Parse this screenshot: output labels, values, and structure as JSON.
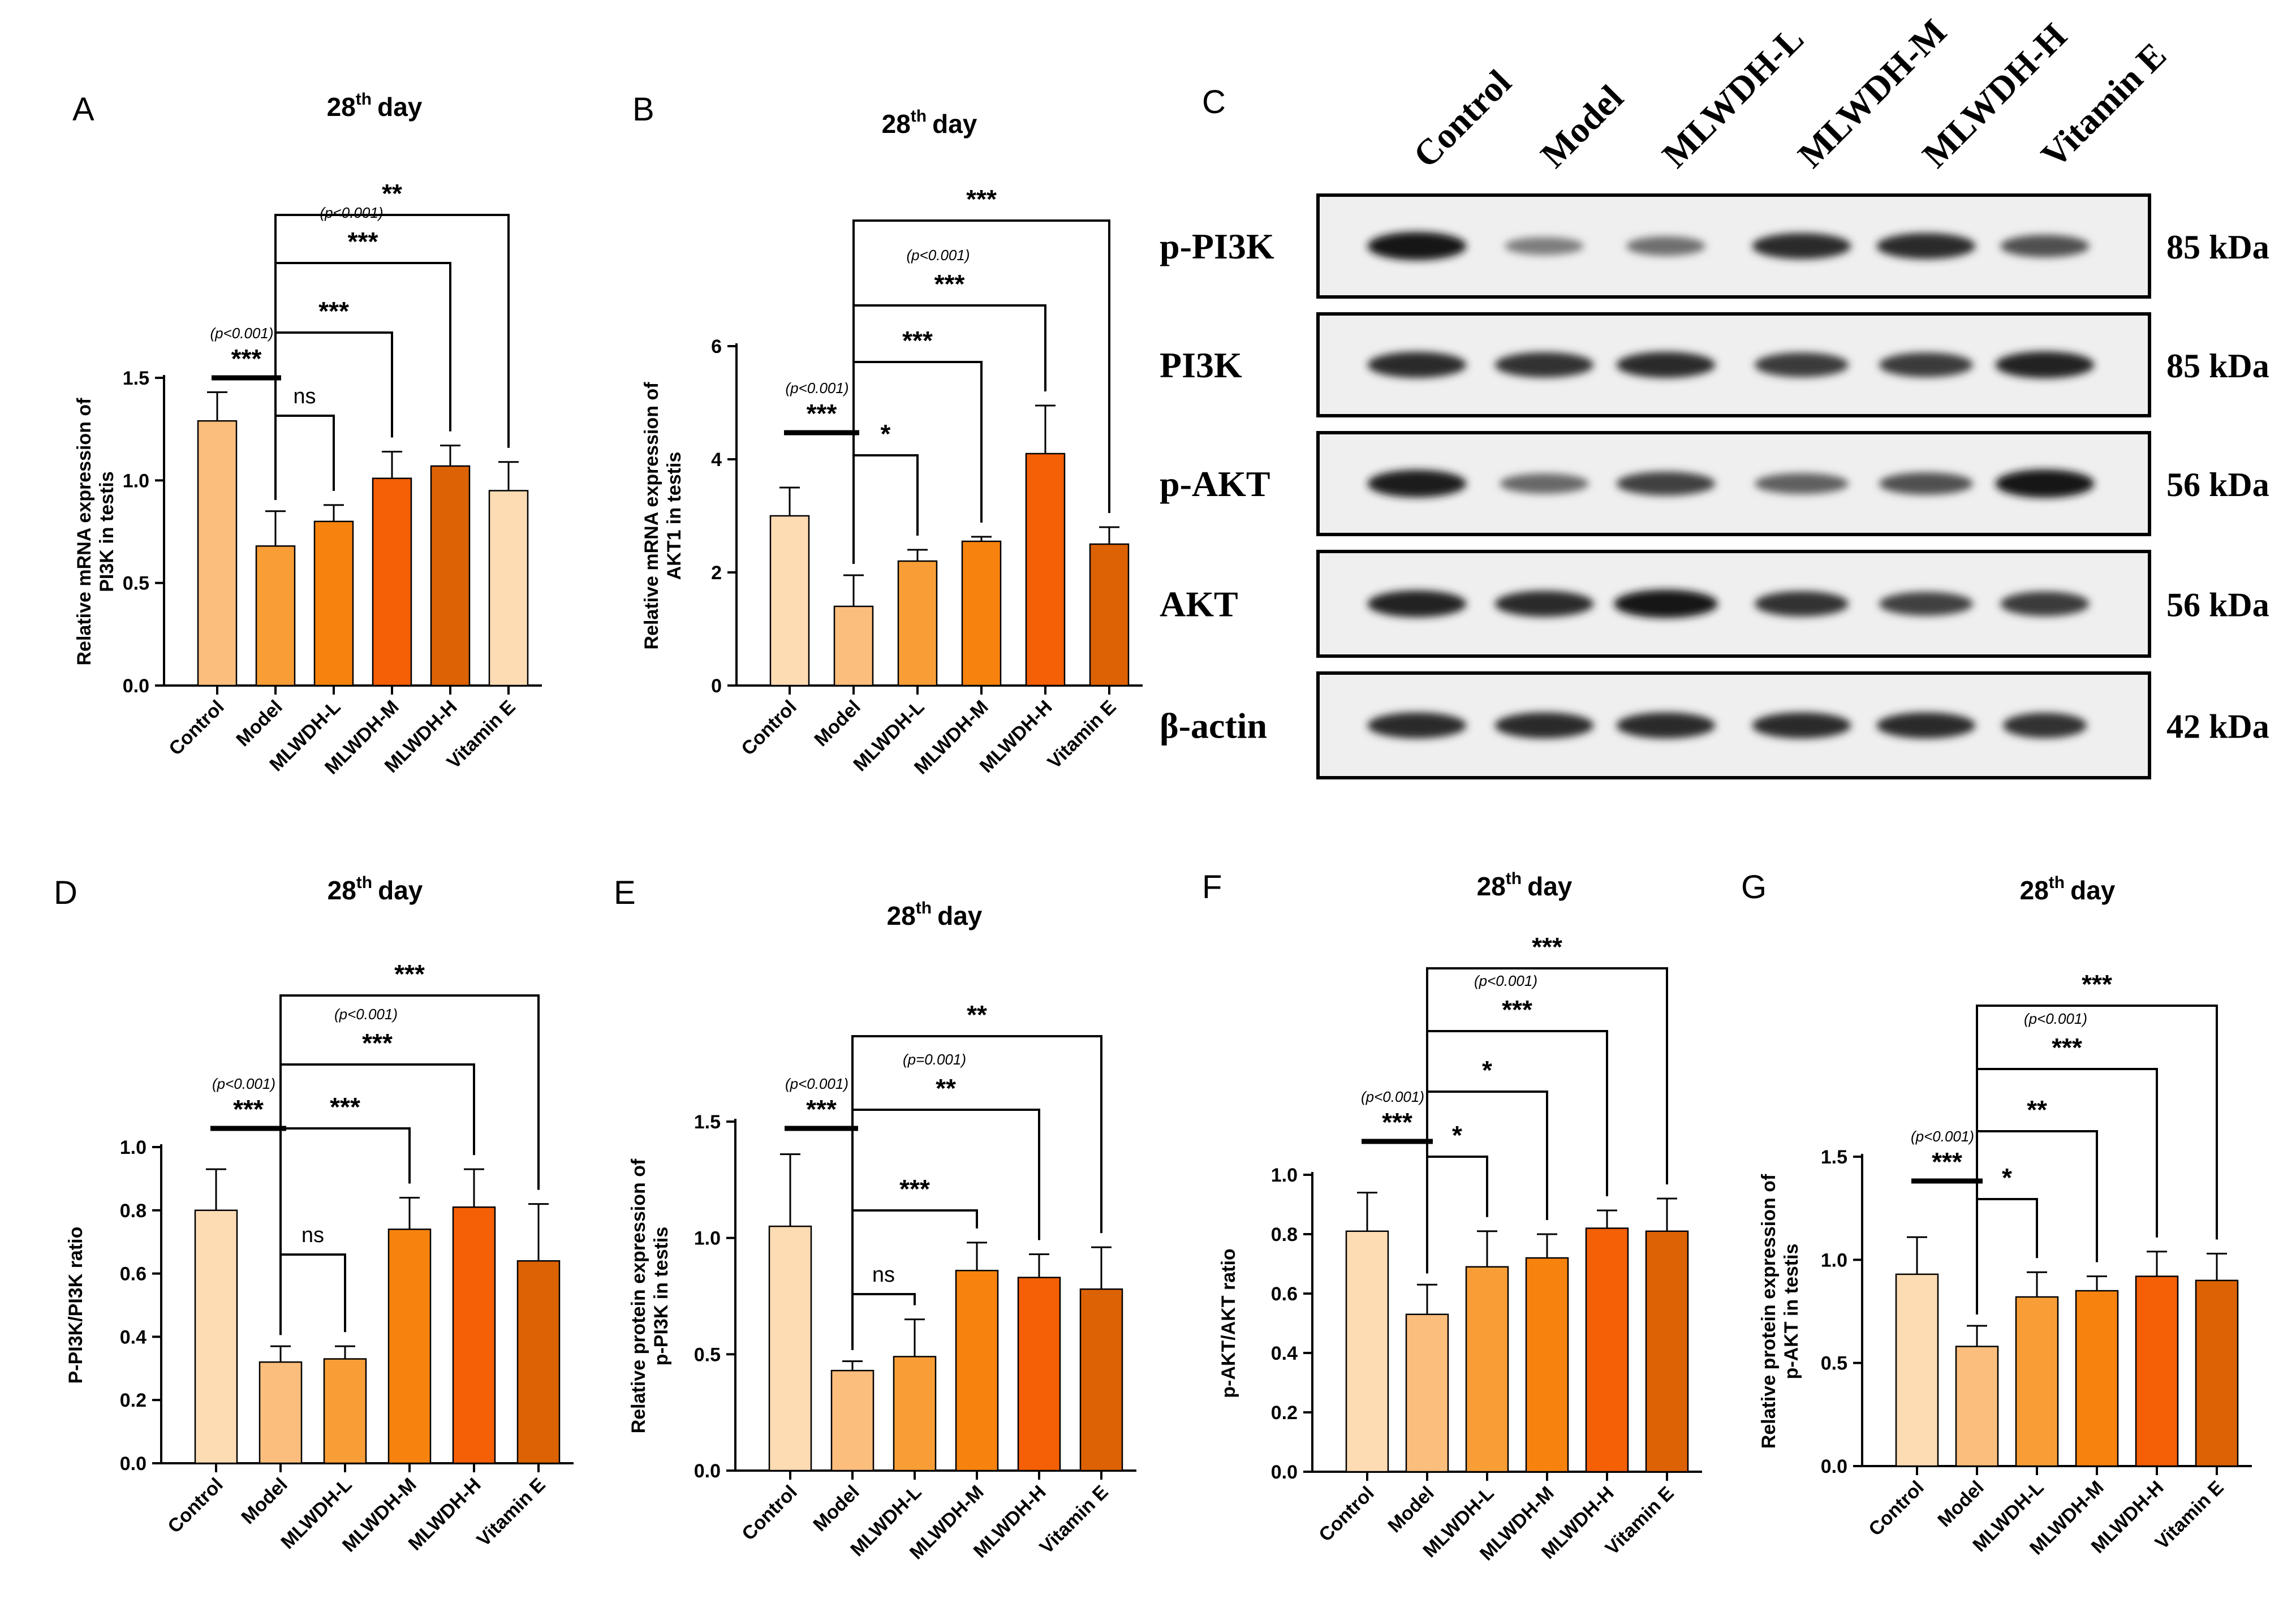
{
  "colors": {
    "c1": "#FDDBB3",
    "c2": "#FBBE7C",
    "c3": "#F99E37",
    "c4": "#F7830E",
    "c5": "#F55F05",
    "c6": "#DC6204"
  },
  "chart_data": [
    {
      "panel": "A",
      "type": "bar",
      "title": "28th day",
      "title_main": "28",
      "title_sup": "th",
      "title_rest": "day",
      "ylabel_lines": [
        "Relative mRNA expression of",
        "PI3K in testis"
      ],
      "ylim": [
        0,
        1.5
      ],
      "yticks": [
        "0.0",
        "0.5",
        "1.0",
        "1.5"
      ],
      "categories": [
        "Control",
        "Model",
        "MLWDH-L",
        "MLWDH-M",
        "MLWDH-H",
        "Vitamin E"
      ],
      "values": [
        1.29,
        0.68,
        0.8,
        1.01,
        1.07,
        0.95
      ],
      "errors": [
        0.14,
        0.17,
        0.08,
        0.13,
        0.1,
        0.14
      ],
      "bar_colors": [
        "#FBBE7C",
        "#F99E37",
        "#F7830E",
        "#F55F05",
        "#DC6204",
        "#FDDBB3"
      ],
      "control_comparison": {
        "stars": "***",
        "p_note": "(p<0.001)"
      },
      "comparisons": [
        {
          "to": 2,
          "label": "ns",
          "p_note": ""
        },
        {
          "to": 3,
          "label": "***",
          "p_note": ""
        },
        {
          "to": 4,
          "label": "***",
          "p_note": "(p<0.001)"
        },
        {
          "to": 5,
          "label": "**",
          "p_note": ""
        }
      ]
    },
    {
      "panel": "B",
      "type": "bar",
      "title": "28th day",
      "title_main": "28",
      "title_sup": "th",
      "title_rest": "day",
      "ylabel_lines": [
        "Relative mRNA expression of",
        "AKT1 in testis"
      ],
      "ylim": [
        0,
        6
      ],
      "yticks": [
        "0",
        "2",
        "4",
        "6"
      ],
      "categories": [
        "Control",
        "Model",
        "MLWDH-L",
        "MLWDH-M",
        "MLWDH-H",
        "Vitamin E"
      ],
      "values": [
        3.0,
        1.4,
        2.2,
        2.55,
        4.1,
        2.5
      ],
      "errors": [
        0.5,
        0.55,
        0.2,
        0.08,
        0.85,
        0.3
      ],
      "bar_colors": [
        "#FDDBB3",
        "#FBBE7C",
        "#F99E37",
        "#F7830E",
        "#F55F05",
        "#DC6204"
      ],
      "control_comparison": {
        "stars": "***",
        "p_note": "(p<0.001)"
      },
      "comparisons": [
        {
          "to": 2,
          "label": "*",
          "p_note": ""
        },
        {
          "to": 3,
          "label": "***",
          "p_note": ""
        },
        {
          "to": 4,
          "label": "***",
          "p_note": "(p<0.001)"
        },
        {
          "to": 5,
          "label": "***",
          "p_note": ""
        }
      ]
    },
    {
      "panel": "D",
      "type": "bar",
      "title": "28th day",
      "title_main": "28",
      "title_sup": "th",
      "title_rest": "day",
      "ylabel_lines": [
        "P-PI3K/PI3K ratio"
      ],
      "ylim": [
        0,
        1.0
      ],
      "yticks": [
        "0.0",
        "0.2",
        "0.4",
        "0.6",
        "0.8",
        "1.0"
      ],
      "categories": [
        "Control",
        "Model",
        "MLWDH-L",
        "MLWDH-M",
        "MLWDH-H",
        "Vitamin E"
      ],
      "values": [
        0.8,
        0.32,
        0.33,
        0.74,
        0.81,
        0.64
      ],
      "errors": [
        0.13,
        0.05,
        0.04,
        0.1,
        0.12,
        0.18
      ],
      "bar_colors": [
        "#FDDBB3",
        "#FBBE7C",
        "#F99E37",
        "#F7830E",
        "#F55F05",
        "#DC6204"
      ],
      "control_comparison": {
        "stars": "***",
        "p_note": "(p<0.001)"
      },
      "comparisons": [
        {
          "to": 2,
          "label": "ns",
          "p_note": ""
        },
        {
          "to": 3,
          "label": "***",
          "p_note": ""
        },
        {
          "to": 4,
          "label": "***",
          "p_note": "(p<0.001)"
        },
        {
          "to": 5,
          "label": "***",
          "p_note": ""
        }
      ]
    },
    {
      "panel": "E",
      "type": "bar",
      "title": "28th day",
      "title_main": "28",
      "title_sup": "th",
      "title_rest": "day",
      "ylabel_lines": [
        "Relative protein expression of",
        "p-PI3K in testis"
      ],
      "ylim": [
        0,
        1.5
      ],
      "yticks": [
        "0.0",
        "0.5",
        "1.0",
        "1.5"
      ],
      "categories": [
        "Control",
        "Model",
        "MLWDH-L",
        "MLWDH-M",
        "MLWDH-H",
        "Vitamin E"
      ],
      "values": [
        1.05,
        0.43,
        0.49,
        0.86,
        0.83,
        0.78
      ],
      "errors": [
        0.31,
        0.04,
        0.16,
        0.12,
        0.1,
        0.18
      ],
      "bar_colors": [
        "#FDDBB3",
        "#FBBE7C",
        "#F99E37",
        "#F7830E",
        "#F55F05",
        "#DC6204"
      ],
      "control_comparison": {
        "stars": "***",
        "p_note": "(p<0.001)"
      },
      "comparisons": [
        {
          "to": 2,
          "label": "ns",
          "p_note": ""
        },
        {
          "to": 3,
          "label": "***",
          "p_note": ""
        },
        {
          "to": 4,
          "label": "**",
          "p_note": "(p=0.001)"
        },
        {
          "to": 5,
          "label": "**",
          "p_note": ""
        }
      ]
    },
    {
      "panel": "F",
      "type": "bar",
      "title": "28th day",
      "title_main": "28",
      "title_sup": "th",
      "title_rest": "day",
      "ylabel_lines": [
        "p-AKT/AKT ratio"
      ],
      "ylim": [
        0,
        1.0
      ],
      "yticks": [
        "0.0",
        "0.2",
        "0.4",
        "0.6",
        "0.8",
        "1.0"
      ],
      "categories": [
        "Control",
        "Model",
        "MLWDH-L",
        "MLWDH-M",
        "MLWDH-H",
        "Vitamin E"
      ],
      "values": [
        0.81,
        0.53,
        0.69,
        0.72,
        0.82,
        0.81
      ],
      "errors": [
        0.13,
        0.1,
        0.12,
        0.08,
        0.06,
        0.11
      ],
      "bar_colors": [
        "#FDDBB3",
        "#FBBE7C",
        "#F99E37",
        "#F7830E",
        "#F55F05",
        "#DC6204"
      ],
      "control_comparison": {
        "stars": "***",
        "p_note": "(p<0.001)"
      },
      "comparisons": [
        {
          "to": 2,
          "label": "*",
          "p_note": ""
        },
        {
          "to": 3,
          "label": "*",
          "p_note": ""
        },
        {
          "to": 4,
          "label": "***",
          "p_note": "(p<0.001)"
        },
        {
          "to": 5,
          "label": "***",
          "p_note": ""
        }
      ]
    },
    {
      "panel": "G",
      "type": "bar",
      "title": "28th day",
      "title_main": "28",
      "title_sup": "th",
      "title_rest": "day",
      "ylabel_lines": [
        "Relative protein expression of",
        "p-AKT in testis"
      ],
      "ylim": [
        0,
        1.5
      ],
      "yticks": [
        "0.0",
        "0.5",
        "1.0",
        "1.5"
      ],
      "categories": [
        "Control",
        "Model",
        "MLWDH-L",
        "MLWDH-M",
        "MLWDH-H",
        "Vitamin E"
      ],
      "values": [
        0.93,
        0.58,
        0.82,
        0.85,
        0.92,
        0.9
      ],
      "errors": [
        0.18,
        0.1,
        0.12,
        0.07,
        0.12,
        0.13
      ],
      "bar_colors": [
        "#FDDBB3",
        "#FBBE7C",
        "#F99E37",
        "#F7830E",
        "#F55F05",
        "#DC6204"
      ],
      "control_comparison": {
        "stars": "***",
        "p_note": "(p<0.001)"
      },
      "comparisons": [
        {
          "to": 2,
          "label": "*",
          "p_note": ""
        },
        {
          "to": 3,
          "label": "**",
          "p_note": ""
        },
        {
          "to": 4,
          "label": "***",
          "p_note": "(p<0.001)"
        },
        {
          "to": 5,
          "label": "***",
          "p_note": ""
        }
      ]
    }
  ],
  "western_blot": {
    "panel": "C",
    "lanes": [
      "Control",
      "Model",
      "MLWDH-L",
      "MLWDH-M",
      "MLWDH-H",
      "Vitamin E"
    ],
    "blots": [
      {
        "name": "p-PI3K",
        "kda": "85 kDa",
        "intensity": [
          1.0,
          0.3,
          0.4,
          0.85,
          0.85,
          0.6
        ],
        "width": [
          1.0,
          0.8,
          0.8,
          1.0,
          1.0,
          0.9
        ]
      },
      {
        "name": "PI3K",
        "kda": "85 kDa",
        "intensity": [
          0.85,
          0.8,
          0.85,
          0.75,
          0.75,
          0.9
        ],
        "width": [
          1.0,
          1.0,
          1.0,
          0.95,
          0.95,
          1.0
        ]
      },
      {
        "name": "p-AKT",
        "kda": "56 kDa",
        "intensity": [
          0.95,
          0.45,
          0.7,
          0.5,
          0.6,
          1.0
        ],
        "width": [
          1.0,
          0.9,
          1.0,
          0.95,
          0.95,
          1.0
        ]
      },
      {
        "name": "AKT",
        "kda": "56 kDa",
        "intensity": [
          0.9,
          0.85,
          1.0,
          0.8,
          0.7,
          0.75
        ],
        "width": [
          1.0,
          1.0,
          1.05,
          0.95,
          0.95,
          0.9
        ]
      },
      {
        "name": "β-actin",
        "kda": "42 kDa",
        "intensity": [
          0.85,
          0.85,
          0.85,
          0.85,
          0.85,
          0.8
        ],
        "width": [
          1.0,
          1.0,
          1.0,
          1.0,
          1.0,
          0.85
        ]
      }
    ]
  }
}
